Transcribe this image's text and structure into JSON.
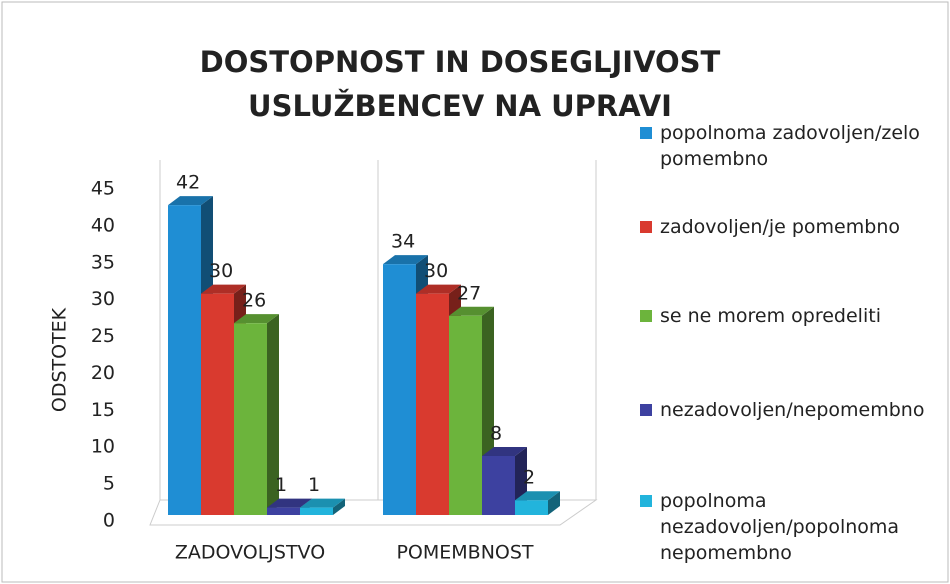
{
  "chart_data": {
    "type": "bar3d",
    "title": "DOSTOPNOST IN DOSEGLJIVOST USLUŽBENCEV NA UPRAVI",
    "y_label": "ODSTOTEK",
    "categories": [
      "ZADOVOLJSTVO",
      "POMEMBNOST"
    ],
    "series": [
      {
        "name": "popolnoma zadovoljen/zelo pomembno",
        "color": "#1f8ed4",
        "values": [
          42,
          34
        ]
      },
      {
        "name": "zadovoljen/je pomembno",
        "color": "#d93a2f",
        "values": [
          30,
          30
        ]
      },
      {
        "name": "se ne morem opredeliti",
        "color": "#6cb43c",
        "values": [
          26,
          27
        ]
      },
      {
        "name": "nezadovoljen/nepomembno",
        "color": "#3d41a0",
        "values": [
          1,
          8
        ]
      },
      {
        "name": "popolnoma nezadovoljen/popolnoma nepomembno",
        "color": "#22b4dc",
        "values": [
          1,
          2
        ]
      }
    ],
    "ylim": [
      0,
      45
    ],
    "yticks": [
      0,
      5,
      10,
      15,
      20,
      25,
      30,
      35,
      40,
      45
    ],
    "legend": "right"
  }
}
